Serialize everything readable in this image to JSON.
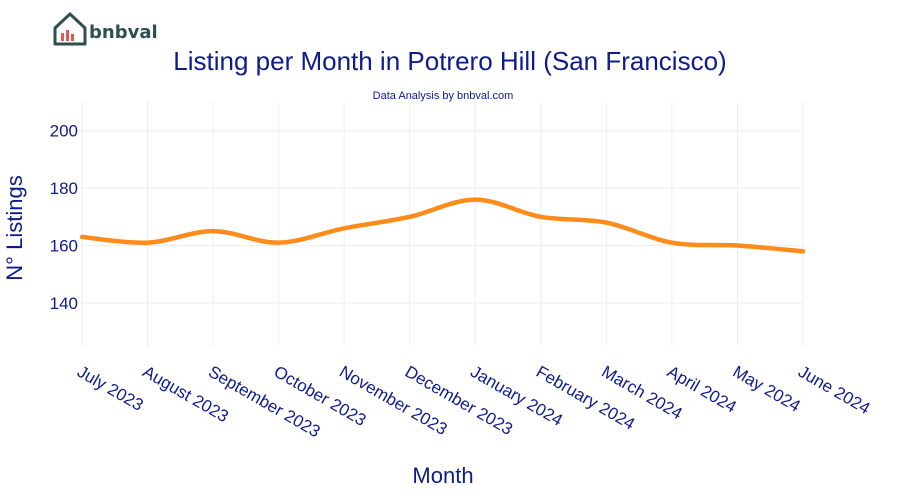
{
  "brand": {
    "name": "bnbval"
  },
  "colors": {
    "line": "#ff8c1a",
    "text": "#0d1b8c",
    "grid": "#eeeeee",
    "logo": "#2f4f4f",
    "logo_accent": "#e05a4f"
  },
  "chart_data": {
    "type": "line",
    "title": "Listing per Month in Potrero Hill (San Francisco)",
    "subtitle": "Data Analysis by bnbval.com",
    "xlabel": "Month",
    "ylabel": "N° Listings",
    "categories": [
      "July 2023",
      "August 2023",
      "September 2023",
      "October 2023",
      "November 2023",
      "December 2023",
      "January 2024",
      "February 2024",
      "March 2024",
      "April 2024",
      "May 2024",
      "June 2024"
    ],
    "series": [
      {
        "values": [
          163,
          161,
          165,
          161,
          166,
          170,
          176,
          170,
          168,
          161,
          160,
          158
        ]
      }
    ],
    "yticks": [
      140,
      160,
      180,
      200
    ],
    "ylim": [
      125,
      210
    ],
    "grid": true,
    "legend": "none"
  }
}
